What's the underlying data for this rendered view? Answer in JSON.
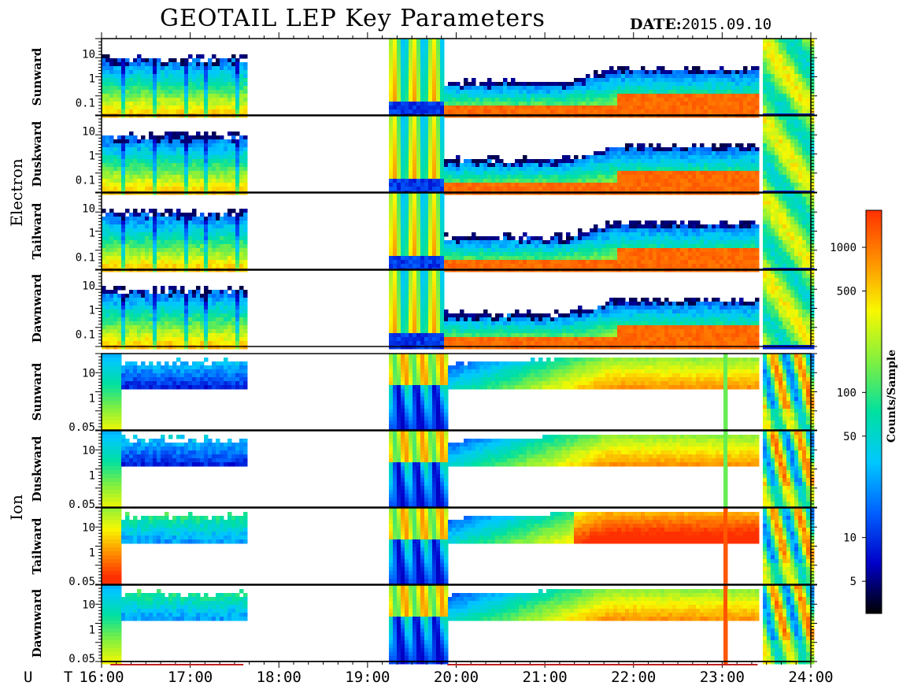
{
  "header": {
    "title": "GEOTAIL LEP Key Parameters",
    "date_label": "DATE:",
    "date_value": "2015.09.10"
  },
  "colorbar": {
    "label": "Counts/Sample",
    "ticks": [
      "1000",
      "500",
      "100",
      "50",
      "10",
      "5"
    ],
    "tick_values": [
      1000,
      500,
      100,
      50,
      10,
      5
    ],
    "range": [
      3,
      1800
    ],
    "scale": "log",
    "colors": [
      "#000000",
      "#0000c8",
      "#0060ff",
      "#00c8ff",
      "#00e0a0",
      "#80f040",
      "#f8f800",
      "#ff9000",
      "#ff3000"
    ]
  },
  "x_axis": {
    "label": "U T",
    "ticks": [
      "16:00",
      "17:00",
      "18:00",
      "19:00",
      "20:00",
      "21:00",
      "22:00",
      "23:00",
      "24:00"
    ],
    "range_hours": [
      16,
      24
    ]
  },
  "groups": [
    {
      "name": "Electron"
    },
    {
      "name": "Ion"
    }
  ],
  "chart_data": {
    "type": "heatmap",
    "title": "GEOTAIL LEP Key Parameters",
    "x_unit": "UT hours",
    "x_range": [
      16,
      24
    ],
    "data_gaps_hours": [
      [
        17.6,
        19.22
      ]
    ],
    "panels": [
      {
        "group": "Electron",
        "direction": "Sunward",
        "yticks": [
          "10",
          "1",
          "0.1"
        ],
        "ylim": [
          0.05,
          20
        ],
        "yscale": "log"
      },
      {
        "group": "Electron",
        "direction": "Duskward",
        "yticks": [
          "10",
          "1",
          "0.1"
        ],
        "ylim": [
          0.05,
          20
        ],
        "yscale": "log"
      },
      {
        "group": "Electron",
        "direction": "Tailward",
        "yticks": [
          "10",
          "1",
          "0.1"
        ],
        "ylim": [
          0.05,
          20
        ],
        "yscale": "log"
      },
      {
        "group": "Electron",
        "direction": "Dawnward",
        "yticks": [
          "10",
          "1",
          "0.1"
        ],
        "ylim": [
          0.05,
          20
        ],
        "yscale": "log"
      },
      {
        "group": "Ion",
        "direction": "Sunward",
        "yticks": [
          "10",
          "1",
          "0.05"
        ],
        "ylim": [
          0.05,
          30
        ],
        "yscale": "log"
      },
      {
        "group": "Ion",
        "direction": "Duskward",
        "yticks": [
          "10",
          "1",
          "0.05"
        ],
        "ylim": [
          0.05,
          30
        ],
        "yscale": "log"
      },
      {
        "group": "Ion",
        "direction": "Tailward",
        "yticks": [
          "10",
          "1",
          "0.05"
        ],
        "ylim": [
          0.05,
          30
        ],
        "yscale": "log"
      },
      {
        "group": "Ion",
        "direction": "Dawnward",
        "yticks": [
          "10",
          "1",
          "0.05"
        ],
        "ylim": [
          0.05,
          30
        ],
        "yscale": "log"
      }
    ],
    "colorbar_label": "Counts/Sample",
    "colorbar_scale": "log"
  }
}
